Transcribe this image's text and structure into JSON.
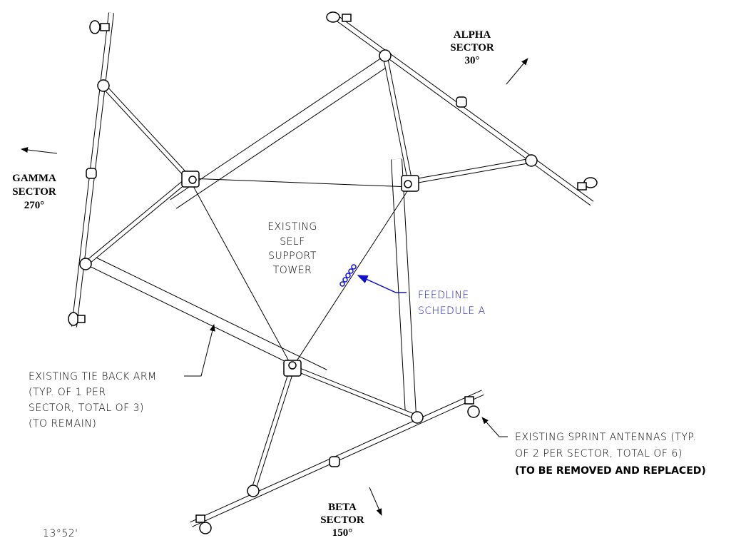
{
  "sectors": {
    "alpha": {
      "lines": [
        "ALPHA",
        "SECTOR",
        "30°"
      ]
    },
    "gamma": {
      "lines": [
        "GAMMA",
        "SECTOR",
        "270°"
      ]
    },
    "beta": {
      "lines": [
        "BETA",
        "SECTOR",
        "150°"
      ]
    }
  },
  "tower": {
    "lines": [
      "EXISTING",
      "SELF",
      "SUPPORT",
      "TOWER"
    ]
  },
  "feedline": {
    "lines": [
      "FEEDLINE",
      "SCHEDULE A"
    ]
  },
  "tie_back_note": {
    "lines": [
      "EXISTING TIE BACK ARM",
      "(TYP. OF 1 PER",
      "SECTOR, TOTAL OF 3)",
      "(TO REMAIN)"
    ]
  },
  "antenna_note": {
    "lines": [
      "EXISTING SPRINT ANTENNAS (TYP.",
      "OF 2 PER SECTOR, TOTAL OF 6)",
      "(TO BE REMOVED AND REPLACED)"
    ]
  },
  "angle": "13°52'"
}
